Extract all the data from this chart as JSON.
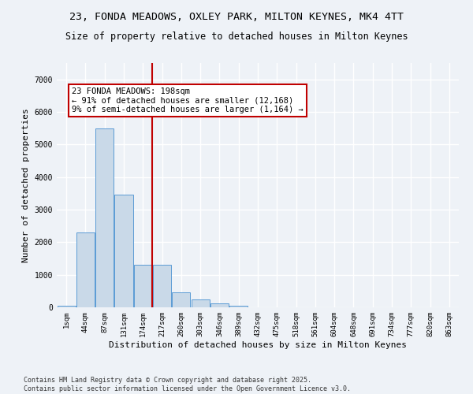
{
  "title_line1": "23, FONDA MEADOWS, OXLEY PARK, MILTON KEYNES, MK4 4TT",
  "title_line2": "Size of property relative to detached houses in Milton Keynes",
  "xlabel": "Distribution of detached houses by size in Milton Keynes",
  "ylabel": "Number of detached properties",
  "bar_labels": [
    "1sqm",
    "44sqm",
    "87sqm",
    "131sqm",
    "174sqm",
    "217sqm",
    "260sqm",
    "303sqm",
    "346sqm",
    "389sqm",
    "432sqm",
    "475sqm",
    "518sqm",
    "561sqm",
    "604sqm",
    "648sqm",
    "691sqm",
    "734sqm",
    "777sqm",
    "820sqm",
    "863sqm"
  ],
  "bar_values": [
    50,
    2300,
    5500,
    3450,
    1300,
    1300,
    450,
    250,
    130,
    50,
    10,
    5,
    2,
    1,
    1,
    0,
    0,
    0,
    0,
    0,
    0
  ],
  "bar_color": "#c9d9e8",
  "bar_edge_color": "#5b9bd5",
  "vline_color": "#c00000",
  "annotation_text": "23 FONDA MEADOWS: 198sqm\n← 91% of detached houses are smaller (12,168)\n9% of semi-detached houses are larger (1,164) →",
  "ylim": [
    0,
    7500
  ],
  "yticks": [
    0,
    1000,
    2000,
    3000,
    4000,
    5000,
    6000,
    7000
  ],
  "footer_line1": "Contains HM Land Registry data © Crown copyright and database right 2025.",
  "footer_line2": "Contains public sector information licensed under the Open Government Licence v3.0.",
  "bg_color": "#eef2f7",
  "grid_color": "#ffffff",
  "title_fontsize": 9.5,
  "subtitle_fontsize": 8.5,
  "tick_fontsize": 6.5,
  "annotation_fontsize": 7.5,
  "ylabel_fontsize": 8,
  "xlabel_fontsize": 8
}
